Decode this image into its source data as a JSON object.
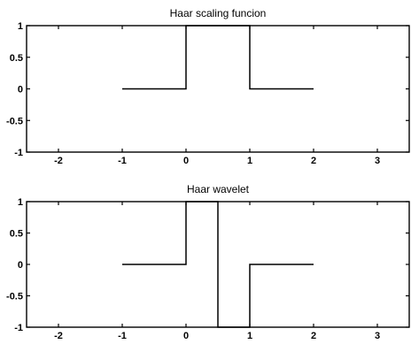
{
  "chart_data": [
    {
      "type": "line",
      "title": "Haar scaling funcion",
      "xlabel": "",
      "ylabel": "",
      "xlim": [
        -2.5,
        3.5
      ],
      "ylim": [
        -1,
        1
      ],
      "xticks": [
        -2,
        -1,
        0,
        1,
        2,
        3
      ],
      "xtick_labels": [
        "-2",
        "-1",
        "0",
        "1",
        "2",
        "3"
      ],
      "yticks": [
        1,
        0.5,
        0,
        -0.5,
        -1
      ],
      "ytick_labels": [
        "1",
        "0.5",
        "0",
        "-0.5",
        "-1"
      ],
      "grid": false,
      "series": [
        {
          "x": [
            -1,
            0,
            0,
            1,
            1,
            2
          ],
          "y": [
            0,
            0,
            1,
            1,
            0,
            0
          ]
        }
      ]
    },
    {
      "type": "line",
      "title": "Haar wavelet",
      "xlabel": "",
      "ylabel": "",
      "xlim": [
        -2.5,
        3.5
      ],
      "ylim": [
        -1,
        1
      ],
      "xticks": [
        -2,
        -1,
        0,
        1,
        2,
        3
      ],
      "xtick_labels": [
        "-2",
        "-1",
        "0",
        "1",
        "2",
        "3"
      ],
      "yticks": [
        1,
        0.5,
        0,
        -0.5,
        -1
      ],
      "ytick_labels": [
        "1",
        "0.5",
        "0",
        "-0.5",
        "-1"
      ],
      "grid": false,
      "series": [
        {
          "x": [
            -1,
            0,
            0,
            0.5,
            0.5,
            1,
            1,
            2
          ],
          "y": [
            0,
            0,
            1,
            1,
            -1,
            -1,
            0,
            0
          ]
        }
      ]
    }
  ]
}
